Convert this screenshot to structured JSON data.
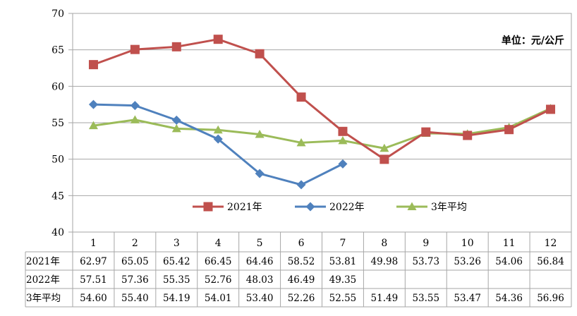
{
  "chart_data": {
    "type": "line",
    "unit_label": "单位：元/公斤",
    "categories": [
      "1",
      "2",
      "3",
      "4",
      "5",
      "6",
      "7",
      "8",
      "9",
      "10",
      "11",
      "12"
    ],
    "ylim": [
      40,
      70
    ],
    "yticks": [
      40,
      45,
      50,
      55,
      60,
      65,
      70
    ],
    "grid": true,
    "legend": "bottom-center",
    "series": [
      {
        "name": "2021年",
        "color": "#c0504d",
        "marker": "square",
        "values": [
          62.97,
          65.05,
          65.42,
          66.45,
          64.46,
          58.52,
          53.81,
          49.98,
          53.73,
          53.26,
          54.06,
          56.84
        ]
      },
      {
        "name": "2022年",
        "color": "#4f81bd",
        "marker": "diamond",
        "values": [
          57.51,
          57.36,
          55.35,
          52.76,
          48.03,
          46.49,
          49.35,
          null,
          null,
          null,
          null,
          null
        ]
      },
      {
        "name": "3年平均",
        "color": "#9bbb59",
        "marker": "triangle",
        "values": [
          54.6,
          55.4,
          54.19,
          54.01,
          53.4,
          52.26,
          52.55,
          51.49,
          53.55,
          53.47,
          54.36,
          56.96
        ]
      }
    ],
    "table": {
      "row_labels": [
        "2021年",
        "2022年",
        "3年平均"
      ],
      "rows": [
        [
          "62.97",
          "65.05",
          "65.42",
          "66.45",
          "64.46",
          "58.52",
          "53.81",
          "49.98",
          "53.73",
          "53.26",
          "54.06",
          "56.84"
        ],
        [
          "57.51",
          "57.36",
          "55.35",
          "52.76",
          "48.03",
          "46.49",
          "49.35",
          "",
          "",
          "",
          "",
          ""
        ],
        [
          "54.60",
          "55.40",
          "54.19",
          "54.01",
          "53.40",
          "52.26",
          "52.55",
          "51.49",
          "53.55",
          "53.47",
          "54.36",
          "56.96"
        ]
      ]
    }
  }
}
